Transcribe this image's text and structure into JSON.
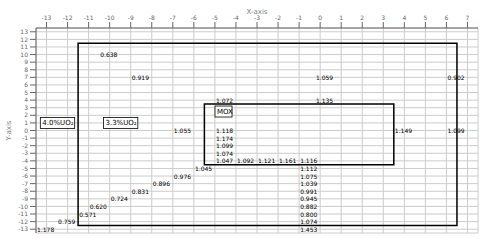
{
  "chart_data": {
    "type": "scatter",
    "xlabel": "X-axis",
    "ylabel": "Y-axis",
    "xlim": [
      -13.5,
      7.5
    ],
    "ylim": [
      -13.5,
      13.5
    ],
    "xticks": [
      -13,
      -12,
      -11,
      -10,
      -9,
      -8,
      -7,
      -6,
      -5,
      -4,
      -3,
      -2,
      -1,
      0,
      1,
      2,
      3,
      4,
      5,
      6,
      7
    ],
    "yticks": [
      -13,
      -12,
      -11,
      -10,
      -9,
      -8,
      -7,
      -6,
      -5,
      -4,
      -3,
      -2,
      -1,
      0,
      1,
      2,
      3,
      4,
      5,
      6,
      7,
      8,
      9,
      10,
      11,
      12,
      13
    ],
    "grid": true,
    "marker": "none",
    "data_labels": true,
    "color": "black",
    "x": [
      -10.45,
      -8.95,
      -4.95,
      -0.2,
      6.05,
      -0.2,
      -6.95,
      -4.95,
      -4.95,
      -4.95,
      -4.95,
      -4.95,
      -3.95,
      -2.95,
      -1.95,
      3.55,
      6.05,
      -0.95,
      -0.95,
      -0.95,
      -0.95,
      -0.95,
      -0.95,
      -0.95,
      -0.95,
      -5.95,
      -6.95,
      -7.95,
      -8.95,
      -9.95,
      -10.95,
      -11.45,
      -12.45,
      -13.45,
      -0.95,
      -0.95
    ],
    "y": [
      10,
      7,
      4,
      7,
      7,
      4,
      0,
      0,
      -1,
      -2,
      -3,
      -4,
      -4,
      -4,
      -4,
      0,
      0,
      -4,
      -5,
      -6,
      -7,
      -8,
      -9,
      -10,
      -11,
      -5,
      -6,
      -7,
      -8,
      -9,
      -10,
      -11,
      -12,
      -13,
      -12,
      -13
    ],
    "values": [
      0.638,
      0.919,
      1.072,
      1.059,
      0.902,
      1.135,
      1.055,
      1.118,
      1.174,
      1.099,
      1.074,
      1.047,
      1.092,
      1.121,
      1.161,
      1.149,
      1.099,
      1.116,
      1.112,
      1.075,
      1.039,
      0.991,
      0.945,
      0.882,
      0.8,
      1.045,
      0.976,
      0.896,
      0.831,
      0.724,
      0.62,
      0.571,
      0.759,
      1.178,
      1.074,
      1.453
    ],
    "value_labels": [
      "0.638",
      "0.919",
      "1.072",
      "1.059",
      "0.902",
      "1.135",
      "1.055",
      "1.118",
      "1.174",
      "1.099",
      "1.074",
      "1.047",
      "1.092",
      "1.121",
      "1.161",
      "1.149",
      "1.099",
      "1.116",
      "1.112",
      "1.075",
      "1.039",
      "0.991",
      "0.945",
      "0.882",
      "0.800",
      "1.045",
      "0.976",
      "0.896",
      "0.831",
      "0.724",
      "0.620",
      "0.571",
      "0.759",
      "1.178",
      "1.074",
      "1.453"
    ],
    "rectangles": [
      {
        "x": -11.5,
        "y": -12.5,
        "width": 18.0,
        "height": 24.0
      },
      {
        "x": -5.5,
        "y": -4.5,
        "width": 9.0,
        "height": 8.0
      }
    ],
    "annotations": [
      {
        "x": -13.2,
        "y": 1.0,
        "text": "4.0%UO₂"
      },
      {
        "x": -10.2,
        "y": 1.0,
        "text": "3.3%UO₂"
      },
      {
        "x": -4.9,
        "y": 2.5,
        "text": "MOX"
      }
    ]
  }
}
